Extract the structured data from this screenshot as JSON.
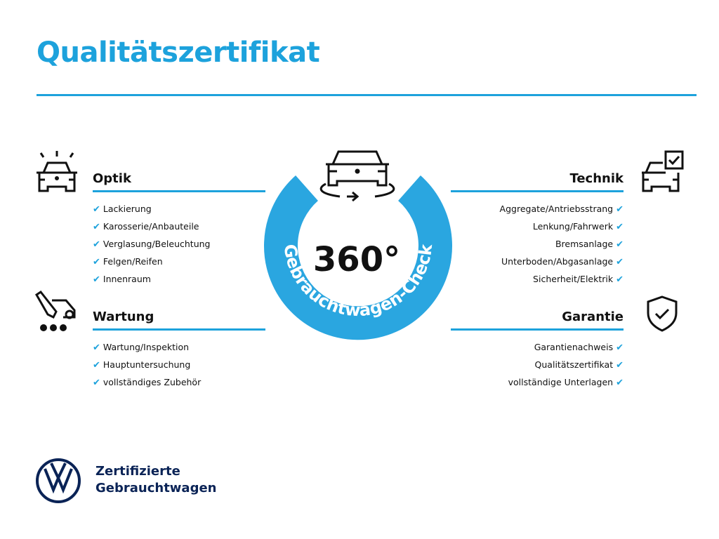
{
  "title": "Qualitätszertifikat",
  "center": {
    "number": "360°",
    "ring_text": "Gebrauchtwagen-Check",
    "color": "#2aa6e0"
  },
  "sections": {
    "optik": {
      "heading": "Optik",
      "items": [
        "Lackierung",
        "Karosserie/Anbauteile",
        "Verglasung/Beleuchtung",
        "Felgen/Reifen",
        "Innenraum"
      ]
    },
    "wartung": {
      "heading": "Wartung",
      "items": [
        "Wartung/Inspektion",
        "Hauptuntersuchung",
        "vollständiges Zubehör"
      ]
    },
    "technik": {
      "heading": "Technik",
      "items": [
        "Aggregate/Antriebsstrang",
        "Lenkung/Fahrwerk",
        "Bremsanlage",
        "Unterboden/Abgasanlage",
        "Sicherheit/Elektrik"
      ]
    },
    "garantie": {
      "heading": "Garantie",
      "items": [
        "Garantienachweis",
        "Qualitätszertifikat",
        "vollständige Unterlagen"
      ]
    }
  },
  "check_mark": "✔",
  "brand": {
    "line1": "Zertifizierte",
    "line2": "Gebrauchtwagen",
    "logo": "VW"
  },
  "accent": "#1da2dc"
}
